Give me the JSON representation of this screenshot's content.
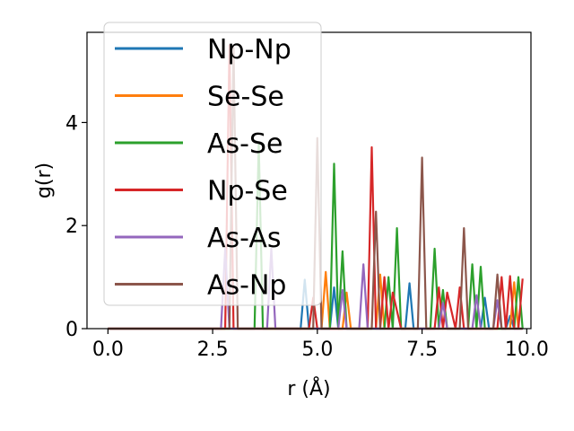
{
  "chart_data": {
    "type": "line",
    "xlabel": "r (Å)",
    "ylabel": "g(r)",
    "xlim": [
      -0.5,
      10.1
    ],
    "ylim": [
      0,
      5.75
    ],
    "xticks": [
      "0.0",
      "2.5",
      "5.0",
      "7.5",
      "10.0"
    ],
    "yticks": [
      "0",
      "2",
      "4"
    ],
    "grid": false,
    "legend_position": "upper-left",
    "series": [
      {
        "name": "Np-Np",
        "color": "#1f77b4",
        "x": [
          0,
          4.6,
          4.7,
          4.8,
          5.3,
          5.4,
          5.5,
          7.1,
          7.2,
          7.3,
          8.9,
          9.0,
          9.1,
          9.5,
          9.6,
          9.7,
          9.9
        ],
        "y": [
          0,
          0,
          0.95,
          0,
          0,
          0.8,
          0,
          0,
          0.88,
          0,
          0,
          0.6,
          0,
          0,
          0.25,
          0,
          0
        ]
      },
      {
        "name": "Se-Se",
        "color": "#ff7f0e",
        "x": [
          0,
          5.1,
          5.2,
          5.3,
          5.6,
          5.7,
          5.8,
          6.4,
          6.5,
          6.6,
          9.6,
          9.7,
          9.8,
          9.9
        ],
        "y": [
          0,
          0,
          1.1,
          0,
          0,
          0.7,
          0,
          0,
          1.05,
          0,
          0,
          0.9,
          0,
          0
        ]
      },
      {
        "name": "As-Se",
        "color": "#2ca02c",
        "x": [
          0,
          3.5,
          3.6,
          3.7,
          5.3,
          5.4,
          5.5,
          5.6,
          5.7,
          6.6,
          6.7,
          6.8,
          6.9,
          7.0,
          7.7,
          7.8,
          7.9,
          8.0,
          8.1,
          8.6,
          8.7,
          8.8,
          8.9,
          9.0,
          9.7,
          9.8,
          9.9
        ],
        "y": [
          0,
          0,
          3.6,
          0,
          0,
          3.2,
          0,
          1.5,
          0,
          0,
          1.0,
          0,
          1.95,
          0,
          0,
          1.55,
          0,
          0.75,
          0,
          0,
          1.25,
          0,
          1.2,
          0,
          0,
          1.0,
          0
        ]
      },
      {
        "name": "Np-Se",
        "color": "#d62728",
        "x": [
          0,
          2.8,
          2.9,
          3.0,
          4.8,
          4.9,
          5.0,
          5.2,
          6.2,
          6.3,
          6.4,
          6.5,
          6.6,
          6.7,
          6.8,
          7.0,
          7.8,
          7.9,
          8.0,
          8.1,
          8.3,
          8.4,
          8.5,
          9.3,
          9.4,
          9.5,
          9.6,
          9.7,
          9.8,
          9.9
        ],
        "y": [
          0,
          0,
          5.5,
          0,
          0,
          0.6,
          0,
          0,
          0,
          3.52,
          0,
          0,
          1.0,
          0,
          0.7,
          0,
          0,
          0.8,
          0,
          0.7,
          0,
          0.8,
          0,
          0,
          1.0,
          0,
          1.02,
          0,
          0,
          0.97
        ]
      },
      {
        "name": "As-As",
        "color": "#9467bd",
        "x": [
          0,
          2.7,
          2.8,
          2.9,
          3.8,
          3.9,
          4.0,
          5.5,
          5.6,
          5.7,
          6.0,
          6.1,
          6.2,
          6.3,
          7.9,
          8.0,
          8.1,
          8.7,
          8.8,
          8.9,
          9.2,
          9.3,
          9.4,
          9.5,
          9.9
        ],
        "y": [
          0,
          0,
          1.55,
          0,
          0,
          1.55,
          0,
          0,
          0.75,
          0,
          0,
          1.25,
          0,
          0,
          0,
          0.5,
          0,
          0,
          0.65,
          0,
          0,
          0.55,
          0,
          0,
          0
        ]
      },
      {
        "name": "As-Np",
        "color": "#8c564b",
        "x": [
          0,
          2.9,
          3.0,
          3.1,
          4.9,
          5.0,
          5.1,
          6.3,
          6.4,
          6.5,
          7.4,
          7.5,
          7.6,
          8.4,
          8.5,
          8.6,
          8.8,
          9.2,
          9.3,
          9.4,
          9.5,
          9.9
        ],
        "y": [
          0,
          0,
          5.45,
          0,
          0,
          3.7,
          0,
          0,
          2.27,
          0,
          0,
          3.32,
          0,
          0,
          1.95,
          0,
          0,
          0,
          1.05,
          0,
          0,
          0
        ]
      }
    ]
  }
}
